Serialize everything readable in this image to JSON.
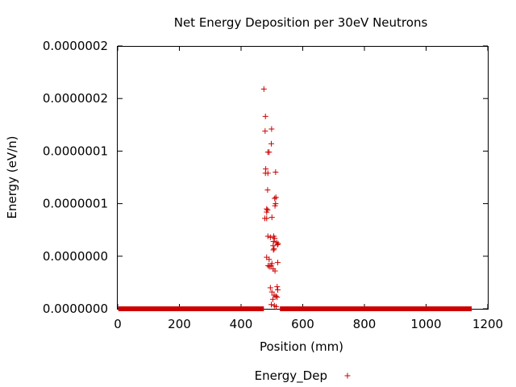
{
  "chart_data": {
    "type": "scatter",
    "title": "Net Energy Deposition per 30eV Neutrons",
    "xlabel": "Position (mm)",
    "ylabel": "Energy (eV/n)",
    "xlim": [
      0,
      1200
    ],
    "ylim": [
      0,
      2.5e-07
    ],
    "x_ticks": [
      0,
      200,
      400,
      600,
      800,
      1000,
      1200
    ],
    "x_tick_labels": [
      "0",
      "200",
      "400",
      "600",
      "800",
      "1000",
      "1200"
    ],
    "y_ticks": [
      0,
      5e-08,
      1e-07,
      1.5e-07,
      2e-07,
      2.5e-07
    ],
    "y_tick_labels": [
      "0.0000000",
      "0.0000000",
      "0.0000001",
      "0.0000001",
      "0.0000002",
      "0.0000002"
    ],
    "grid": false,
    "legend_position": "bottom-center",
    "series": [
      {
        "name": "Energy_Dep",
        "color": "#cc0000",
        "marker": "plus",
        "zero_segments": [
          [
            2,
            474
          ],
          [
            526,
            1148
          ]
        ],
        "points": [
          [
            474,
            2.09e-07
          ],
          [
            479,
            1.83e-07
          ],
          [
            478,
            1.69e-07
          ],
          [
            499,
            1.71e-07
          ],
          [
            498,
            1.57e-07
          ],
          [
            487,
            1.49e-07
          ],
          [
            491,
            1.49e-07
          ],
          [
            480,
            1.33e-07
          ],
          [
            479,
            1.29e-07
          ],
          [
            487,
            1.29e-07
          ],
          [
            512,
            1.3e-07
          ],
          [
            486,
            1.13e-07
          ],
          [
            513,
            1.06e-07
          ],
          [
            509,
            1.05e-07
          ],
          [
            512,
            1e-07
          ],
          [
            510,
            9.8e-08
          ],
          [
            483,
            9.5e-08
          ],
          [
            486,
            9.4e-08
          ],
          [
            483,
            9.2e-08
          ],
          [
            477,
            8.6e-08
          ],
          [
            483,
            8.6e-08
          ],
          [
            500,
            8.7e-08
          ],
          [
            487,
            6.9e-08
          ],
          [
            495,
            6.8e-08
          ],
          [
            506,
            6.9e-08
          ],
          [
            509,
            6.7e-08
          ],
          [
            505,
            6.4e-08
          ],
          [
            515,
            6.3e-08
          ],
          [
            520,
            6.2e-08
          ],
          [
            518,
            6.1e-08
          ],
          [
            504,
            6e-08
          ],
          [
            507,
            5.7e-08
          ],
          [
            505,
            5.6e-08
          ],
          [
            483,
            4.9e-08
          ],
          [
            491,
            4.7e-08
          ],
          [
            519,
            4.4e-08
          ],
          [
            500,
            4.3e-08
          ],
          [
            488,
            4.1e-08
          ],
          [
            497,
            4.1e-08
          ],
          [
            492,
            4e-08
          ],
          [
            504,
            3.8e-08
          ],
          [
            510,
            3.6e-08
          ],
          [
            495,
            2e-08
          ],
          [
            517,
            2.1e-08
          ],
          [
            519,
            1.8e-08
          ],
          [
            500,
            1.6e-08
          ],
          [
            507,
            1.3e-08
          ],
          [
            513,
            1.2e-08
          ],
          [
            517,
            1.1e-08
          ],
          [
            503,
            9e-09
          ],
          [
            498,
            4e-09
          ],
          [
            508,
            3e-09
          ],
          [
            514,
            2e-09
          ]
        ]
      }
    ]
  }
}
